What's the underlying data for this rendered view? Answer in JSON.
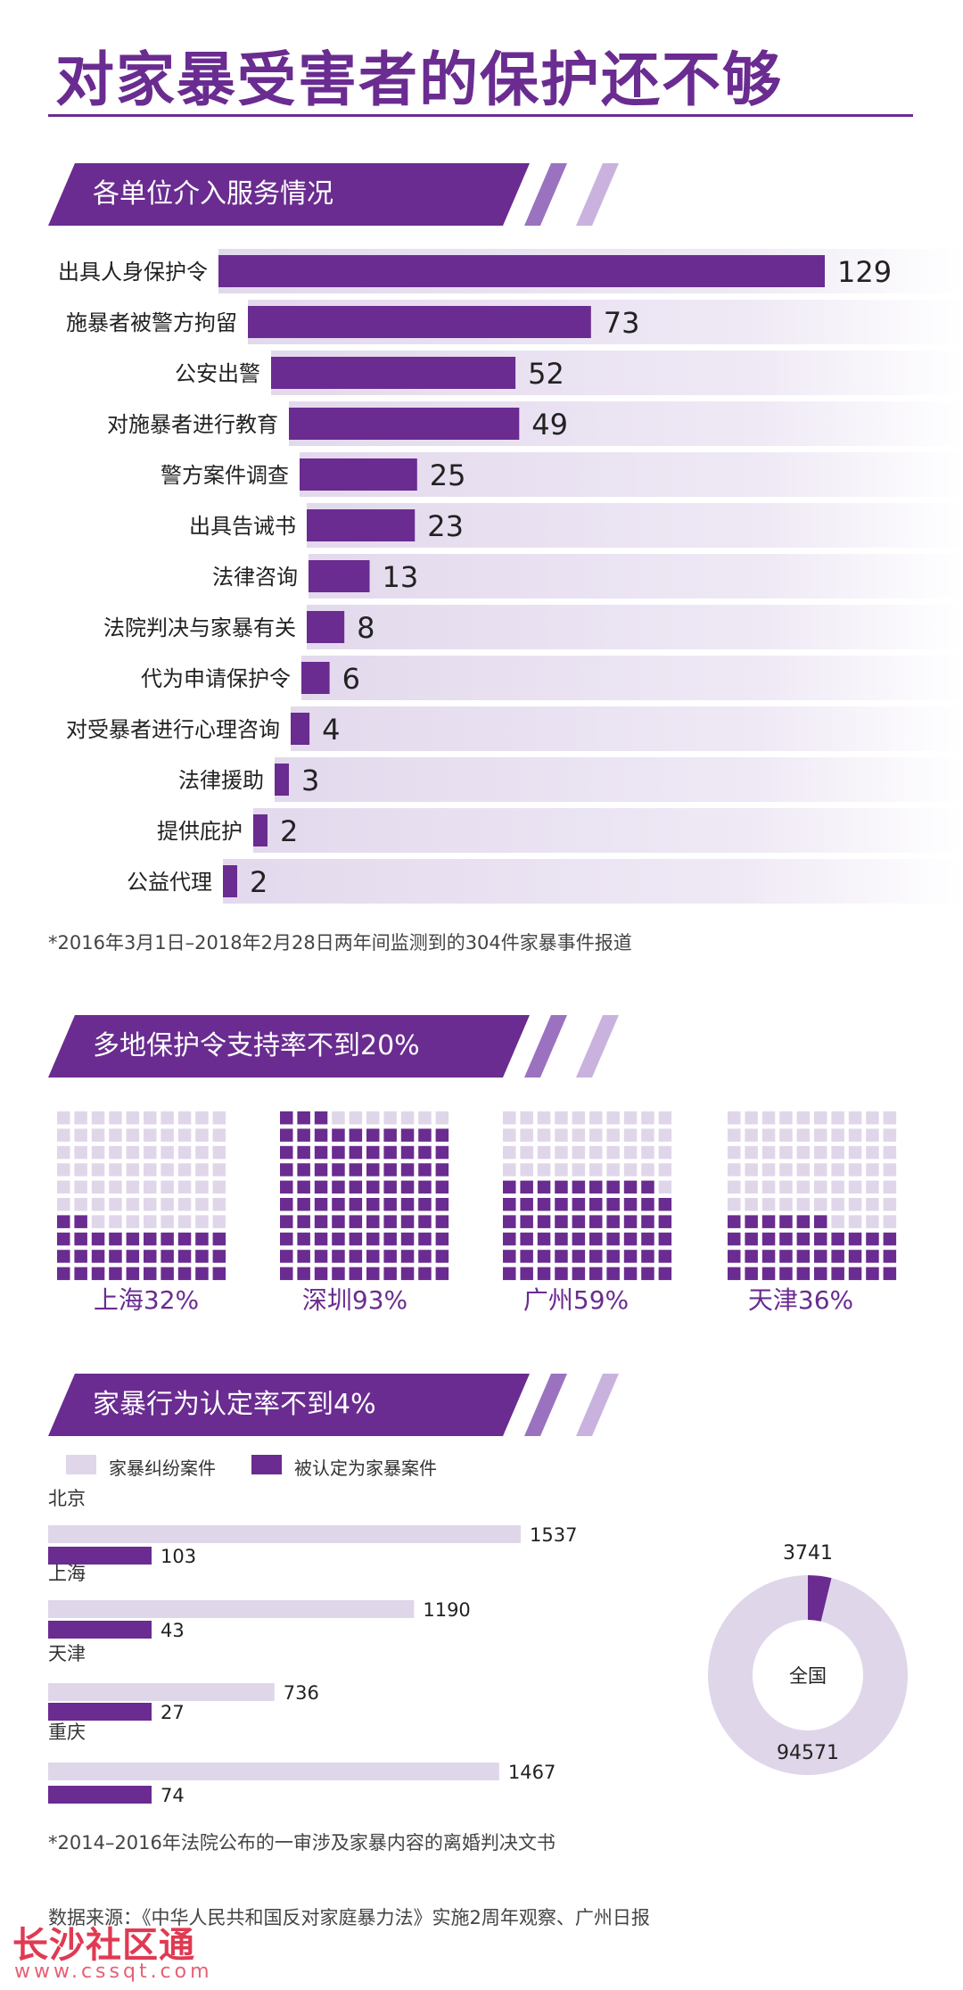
{
  "title": "对家暴受害者的保护还不够",
  "section1": {
    "heading": "各单位介入服务情况",
    "footnote": "*2016年3月1日–2018年2月28日两年间监测到的304件家暴事件报道"
  },
  "section2": {
    "heading": "多地保护令支持率不到20%",
    "cities": [
      {
        "label": "上海32%",
        "percent": 32
      },
      {
        "label": "深圳93%",
        "percent": 93
      },
      {
        "label": "广州59%",
        "percent": 59
      },
      {
        "label": "天津36%",
        "percent": 36
      }
    ]
  },
  "section3": {
    "heading": "家暴行为认定率不到4%",
    "legend": [
      "家暴纠纷案件",
      "被认定为家暴案件"
    ],
    "footnote": "*2014–2016年法院公布的一审涉及家暴内容的离婚判决文书"
  },
  "source": "数据来源：《中华人民共和国反对家庭暴力法》实施2周年观察、广州日报",
  "watermark": {
    "name": "长沙社区通",
    "url": "www.cssqt.com"
  },
  "colors": {
    "primary": "#6a2c90",
    "light": "#e0d6ea",
    "mid": "#9b72c0"
  },
  "chart_data": [
    {
      "type": "bar",
      "orientation": "horizontal",
      "categories": [
        "出具人身保护令",
        "施暴者被警方拘留",
        "公安出警",
        "对施暴者进行教育",
        "警方案件调查",
        "出具告诫书",
        "法律咨询",
        "法院判决与家暴有关",
        "代为申请保护令",
        "对受暴者进行心理咨询",
        "法律援助",
        "提供庇护",
        "公益代理"
      ],
      "values": [
        129,
        73,
        52,
        49,
        25,
        23,
        13,
        8,
        6,
        4,
        3,
        2,
        2
      ]
    },
    {
      "type": "waffle",
      "categories": [
        "上海",
        "深圳",
        "广州",
        "天津"
      ],
      "values": [
        32,
        93,
        59,
        36
      ],
      "unit": "%"
    },
    {
      "type": "bar",
      "orientation": "horizontal",
      "categories": [
        "北京",
        "上海",
        "天津",
        "重庆"
      ],
      "series": [
        {
          "name": "家暴纠纷案件",
          "values": [
            1537,
            1190,
            736,
            1467
          ]
        },
        {
          "name": "被认定为家暴案件",
          "values": [
            103,
            43,
            27,
            74
          ]
        }
      ]
    },
    {
      "type": "pie",
      "center_label": "全国",
      "categories": [
        "被认定为家暴案件",
        "家暴纠纷案件"
      ],
      "values": [
        3741,
        94571
      ]
    }
  ]
}
